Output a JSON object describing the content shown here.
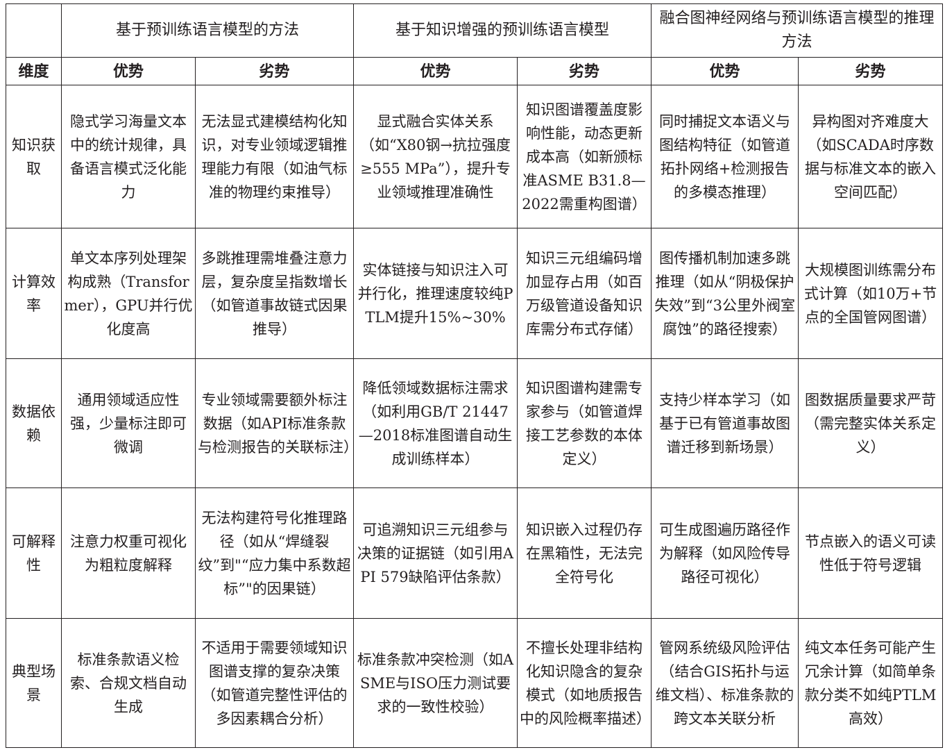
{
  "header": {
    "groups": [
      "",
      "基于预训练语言模型的方法",
      "基于知识增强的预训练语言模型",
      "融合图神经网络与预训练语言模型的推理方法"
    ],
    "subheaders": [
      "维度",
      "优势",
      "劣势",
      "优势",
      "劣势",
      "优势",
      "劣势"
    ]
  },
  "rows": [
    {
      "dimension": "知识获取",
      "cells": [
        "隐式学习海量文本中的统计规律，具备语言模式泛化能力",
        "无法显式建模结构化知识，对专业领域逻辑推理能力有限（如油气标准的物理约束推导）",
        "显式融合实体关系（如“X80钢→抗拉强度≥555 MPa”），提升专业领域推理准确性",
        "知识图谱覆盖度影响性能，动态更新成本高（如新颁标准ASME B31.8—2022需重构图谱）",
        "同时捕捉文本语义与图结构特征（如管道拓扑网络+检测报告的多模态推理）",
        "异构图对齐难度大（如SCADA时序数据与标准文本的嵌入空间匹配）"
      ]
    },
    {
      "dimension": "计算效率",
      "cells": [
        "单文本序列处理架构成熟（Transformer），GPU并行优化度高",
        "多跳推理需堆叠注意力层，复杂度呈指数增长（如管道事故链式因果推导）",
        "实体链接与知识注入可并行化，推理速度较纯PTLM提升15%~30%",
        "知识三元组编码增加显存占用（如百万级管道设备知识库需分布式存储）",
        "图传播机制加速多跳推理（如从“阴极保护失效”到“3公里外阀室腐蚀”的路径搜索）",
        "大规模图训练需分布式计算（如10万+节点的全国管网图谱）"
      ]
    },
    {
      "dimension": "数据依赖",
      "cells": [
        "通用领域适应性强，少量标注即可微调",
        "专业领域需要额外标注数据（如API标准条款与检测报告的关联标注）",
        "降低领域数据标注需求（如利用GB/T 21447—2018标准图谱自动生成训练样本）",
        "知识图谱构建需专家参与（如管道焊接工艺参数的本体定义）",
        "支持少样本学习（如基于已有管道事故图谱迁移到新场景）",
        "图数据质量要求严苛（需完整实体关系定义）"
      ]
    },
    {
      "dimension": "可解释性",
      "cells": [
        "注意力权重可视化为粗粒度解释",
        "无法构建符号化推理路径（如从“焊缝裂纹”到\"“应力集中系数超标”\"的因果链）",
        "可追溯知识三元组参与决策的证据链（如引用API 579缺陷评估条款）",
        "知识嵌入过程仍存在黑箱性，无法完全符号化",
        "可生成图遍历路径作为解释（如风险传导路径可视化）",
        "节点嵌入的语义可读性低于符号逻辑"
      ]
    },
    {
      "dimension": "典型场景",
      "cells": [
        "标准条款语义检索、合规文档自动生成",
        "不适用于需要领域知识图谱支撑的复杂决策（如管道完整性评估的多因素耦合分析）",
        "标准条款冲突检测（如ASME与ISO压力测试要求的一致性校验）",
        "不擅长处理非结构化知识隐含的复杂模式（如地质报告中的风险概率描述）",
        "管网系统级风险评估（结合GIS拓扑与运维文档）、标准条款的跨文本关联分析",
        "纯文本任务可能产生冗余计算（如简单条款分类不如纯PTLM高效）"
      ]
    }
  ]
}
